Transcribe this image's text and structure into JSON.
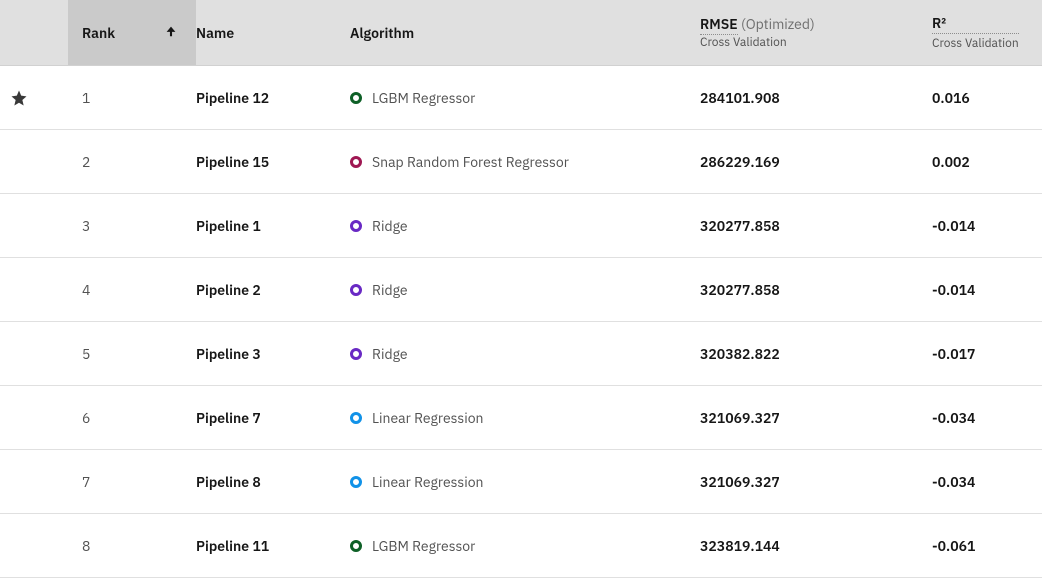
{
  "colors": {
    "header_bg": "#e0e0e0",
    "header_sorted_bg": "#cacaca",
    "row_border": "#e0e0e0",
    "text_primary": "#161616",
    "text_secondary": "#525252",
    "text_muted": "#6f6f6f",
    "star_fill": "#393939",
    "arrow_fill": "#161616"
  },
  "algorithm_colors": {
    "LGBM Regressor": "#0e6027",
    "Snap Random Forest Regressor": "#9f1853",
    "Ridge": "#6929c4",
    "Linear Regression": "#1192e8"
  },
  "header": {
    "rank": "Rank",
    "name": "Name",
    "algorithm": "Algorithm",
    "rmse_label": "RMSE",
    "rmse_suffix": "(Optimized)",
    "rmse_sub": "Cross Validation",
    "r2_label": "R²",
    "r2_sub": "Cross Validation"
  },
  "rows": [
    {
      "starred": true,
      "rank": "1",
      "name": "Pipeline 12",
      "algorithm": "LGBM Regressor",
      "rmse": "284101.908",
      "r2": "0.016"
    },
    {
      "starred": false,
      "rank": "2",
      "name": "Pipeline 15",
      "algorithm": "Snap Random Forest Regressor",
      "rmse": "286229.169",
      "r2": "0.002"
    },
    {
      "starred": false,
      "rank": "3",
      "name": "Pipeline 1",
      "algorithm": "Ridge",
      "rmse": "320277.858",
      "r2": "-0.014"
    },
    {
      "starred": false,
      "rank": "4",
      "name": "Pipeline 2",
      "algorithm": "Ridge",
      "rmse": "320277.858",
      "r2": "-0.014"
    },
    {
      "starred": false,
      "rank": "5",
      "name": "Pipeline 3",
      "algorithm": "Ridge",
      "rmse": "320382.822",
      "r2": "-0.017"
    },
    {
      "starred": false,
      "rank": "6",
      "name": "Pipeline 7",
      "algorithm": "Linear Regression",
      "rmse": "321069.327",
      "r2": "-0.034"
    },
    {
      "starred": false,
      "rank": "7",
      "name": "Pipeline 8",
      "algorithm": "Linear Regression",
      "rmse": "321069.327",
      "r2": "-0.034"
    },
    {
      "starred": false,
      "rank": "8",
      "name": "Pipeline 11",
      "algorithm": "LGBM Regressor",
      "rmse": "323819.144",
      "r2": "-0.061"
    }
  ]
}
